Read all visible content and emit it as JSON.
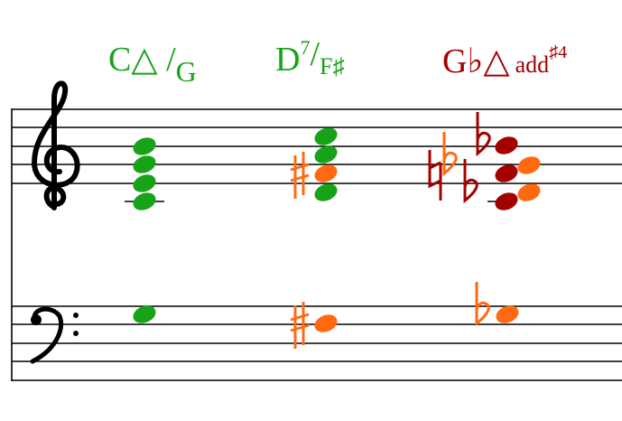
{
  "chords": [
    {
      "symbol": "C△ /",
      "bass": "G"
    },
    {
      "symbol": "D",
      "extension": "7",
      "slash": "/",
      "bass": "F♯"
    },
    {
      "symbol": "G♭△",
      "addition": "add",
      "extension": "♯4"
    }
  ]
}
